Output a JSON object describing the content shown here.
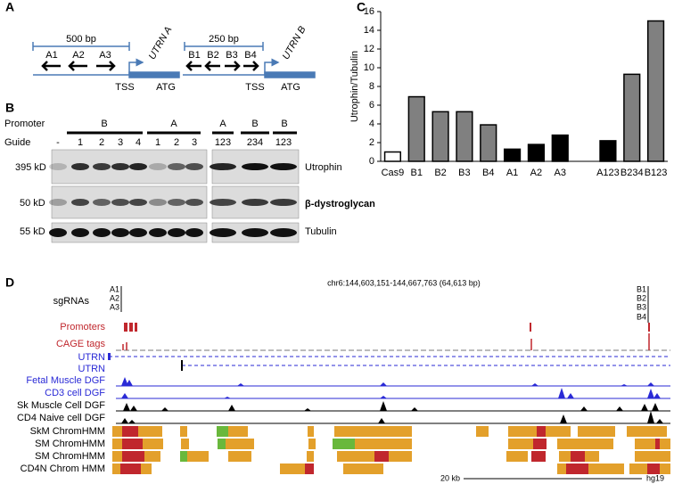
{
  "panel_a": {
    "label": "A",
    "left": {
      "scale": "500 bp",
      "gene": "UTRN A",
      "guides": [
        "A1",
        "A2",
        "A3"
      ],
      "tss": "TSS",
      "atg": "ATG"
    },
    "right": {
      "scale": "250 bp",
      "gene": "UTRN B",
      "guides": [
        "B1",
        "B2",
        "B3",
        "B4"
      ],
      "tss": "TSS",
      "atg": "ATG"
    }
  },
  "panel_b": {
    "label": "B",
    "promoter_label": "Promoter",
    "promoters": [
      "B",
      "A",
      "A",
      "B",
      "B"
    ],
    "guide_label": "Guide",
    "guides": [
      "-",
      "1",
      "2",
      "3",
      "4",
      "1",
      "2",
      "3",
      "123",
      "234",
      "123"
    ],
    "sizes": [
      "395 kD",
      "50 kD",
      "55 kD"
    ],
    "proteins": [
      "Utrophin",
      "β-dystroglycan",
      "Tubulin"
    ]
  },
  "chart_data": {
    "type": "bar",
    "panel_label": "C",
    "y_label": "Utrophin/Tubulin",
    "categories": [
      "Cas9",
      "B1",
      "B2",
      "B3",
      "B4",
      "A1",
      "A2",
      "A3",
      null,
      "A123",
      "B234",
      "B123"
    ],
    "values": [
      1.0,
      6.9,
      5.3,
      5.3,
      3.9,
      1.3,
      1.8,
      2.8,
      null,
      2.2,
      9.3,
      15.0
    ],
    "colors": [
      "#ffffff",
      "#808080",
      "#808080",
      "#808080",
      "#808080",
      "#000000",
      "#000000",
      "#000000",
      null,
      "#000000",
      "#808080",
      "#808080"
    ],
    "ylim": [
      0,
      16
    ],
    "yticks": [
      0,
      2,
      4,
      6,
      8,
      10,
      12,
      14,
      16
    ]
  },
  "panel_d": {
    "label": "D",
    "coords": "chr6:144,603,151-144,667,763 (64,613 bp)",
    "sgrna_label": "sgRNAs",
    "sgrnas_a": [
      "A1",
      "A2",
      "A3"
    ],
    "sgrnas_b": [
      "B1",
      "B2",
      "B3",
      "B4"
    ],
    "tracks": [
      "Promoters",
      "CAGE tags",
      "UTRN",
      "UTRN",
      "Fetal Muscle DGF",
      "CD3 cell DGF",
      "Sk Muscle Cell DGF",
      "CD4 Naive cell DGF",
      "SkM ChromHMM",
      "SM ChromHMM",
      "SM ChromHMM",
      "CD4N Chrom HMM"
    ],
    "scale": "20 kb",
    "assembly": "hg19"
  }
}
